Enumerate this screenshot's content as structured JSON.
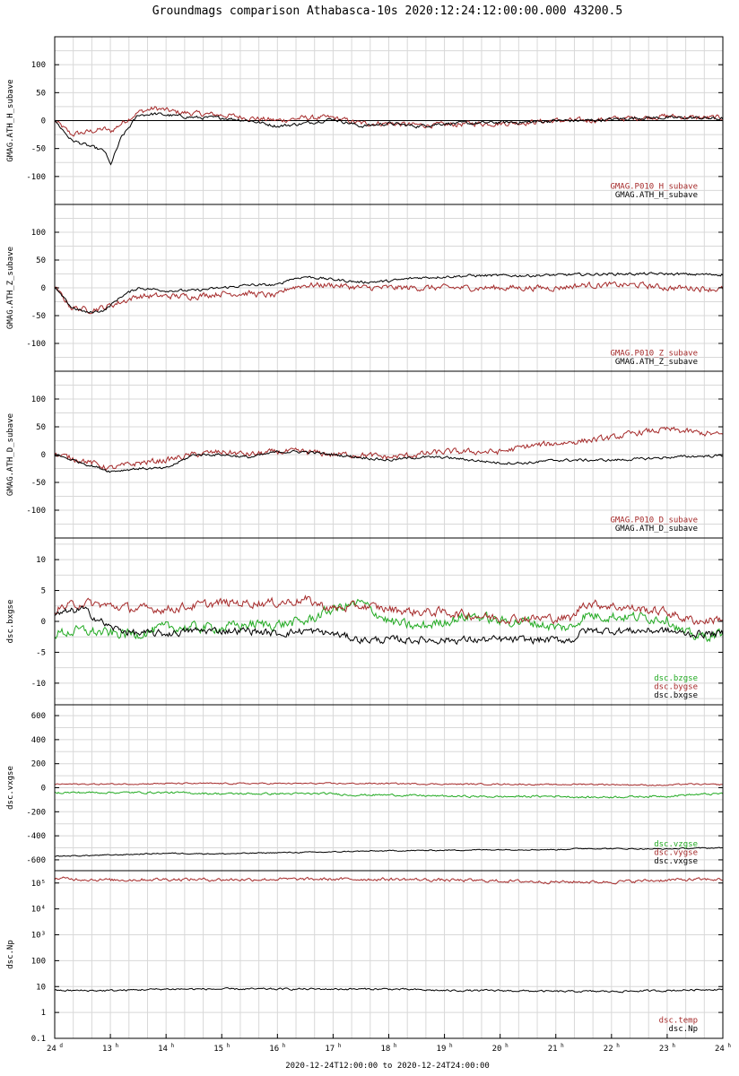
{
  "title": "Groundmags comparison Athabasca-10s 2020:12:24:12:00:00.000 43200.5",
  "time_range_label": "2020-12-24T12:00:00 to 2020-12-24T24:00:00",
  "colors": {
    "black": "#000000",
    "red": "#a52a2a",
    "green": "#22aa22",
    "grid": "#d8d8d8"
  },
  "chart_data": [
    {
      "type": "line",
      "ylabel": "GMAG.ATH_H_subave",
      "ylim": [
        -150,
        150
      ],
      "yticks": [
        -100,
        -50,
        0,
        50,
        100
      ],
      "yticklabels": [
        "-100",
        "-50",
        "0",
        "50",
        "100"
      ],
      "zero_line": true,
      "x": [
        12,
        12.3,
        12.6,
        12.9,
        13.0,
        13.2,
        13.5,
        13.8,
        14.2,
        14.6,
        15.0,
        15.5,
        16.0,
        16.5,
        17.0,
        17.5,
        18.0,
        18.5,
        19.0,
        19.5,
        20.0,
        20.5,
        21.0,
        21.5,
        22.0,
        22.5,
        23.0,
        23.5,
        24
      ],
      "legend": [
        "GMAG.P010_H_subave",
        "GMAG.ATH_H_subave"
      ],
      "series": [
        {
          "name": "GMAG.P010_H_subave",
          "color": "red",
          "noise": 4.0,
          "values": [
            0,
            -25,
            -20,
            -15,
            -20,
            -5,
            15,
            22,
            15,
            12,
            10,
            5,
            0,
            5,
            5,
            -5,
            -5,
            -8,
            -8,
            -5,
            -5,
            -3,
            0,
            0,
            3,
            5,
            8,
            5,
            5
          ]
        },
        {
          "name": "GMAG.ATH_H_subave",
          "color": "black",
          "noise": 2.5,
          "values": [
            0,
            -35,
            -45,
            -55,
            -80,
            -30,
            10,
            12,
            8,
            5,
            5,
            0,
            -10,
            -5,
            3,
            -10,
            -5,
            -10,
            -5,
            -5,
            -3,
            -3,
            0,
            0,
            2,
            5,
            5,
            5,
            3
          ]
        }
      ]
    },
    {
      "type": "line",
      "ylabel": "GMAG.ATH_Z_subave",
      "ylim": [
        -150,
        150
      ],
      "yticks": [
        -100,
        -50,
        0,
        50,
        100
      ],
      "yticklabels": [
        "-100",
        "-50",
        "0",
        "50",
        "100"
      ],
      "x": [
        12,
        12.3,
        12.6,
        12.9,
        13.2,
        13.5,
        14.0,
        14.5,
        15.0,
        15.5,
        16.0,
        16.2,
        16.5,
        17.0,
        17.5,
        18.0,
        18.5,
        19.0,
        19.5,
        20.0,
        20.5,
        21.0,
        21.5,
        22.0,
        22.5,
        23.0,
        23.5,
        24
      ],
      "legend": [
        "GMAG.P010_Z_subave",
        "GMAG.ATH_Z_subave"
      ],
      "series": [
        {
          "name": "GMAG.P010_Z_subave",
          "color": "red",
          "noise": 4.5,
          "values": [
            0,
            -35,
            -40,
            -35,
            -25,
            -15,
            -15,
            -15,
            -10,
            -10,
            -15,
            0,
            5,
            5,
            0,
            0,
            0,
            0,
            0,
            0,
            0,
            0,
            5,
            5,
            5,
            0,
            0,
            -3
          ]
        },
        {
          "name": "GMAG.ATH_Z_subave",
          "color": "black",
          "noise": 2.0,
          "values": [
            0,
            -35,
            -45,
            -40,
            -15,
            0,
            -5,
            -5,
            0,
            5,
            5,
            15,
            20,
            15,
            10,
            12,
            18,
            20,
            22,
            22,
            22,
            23,
            24,
            25,
            25,
            25,
            24,
            24
          ]
        }
      ]
    },
    {
      "type": "line",
      "ylabel": "GMAG.ATH_D_subave",
      "ylim": [
        -150,
        150
      ],
      "yticks": [
        -100,
        -50,
        0,
        50,
        100
      ],
      "yticklabels": [
        "-100",
        "-50",
        "0",
        "50",
        "100"
      ],
      "x": [
        12,
        12.5,
        13.0,
        13.5,
        14.0,
        14.5,
        15.0,
        15.5,
        16.0,
        16.5,
        17.0,
        17.5,
        18.0,
        18.5,
        19.0,
        19.5,
        20.0,
        20.5,
        21.0,
        21.5,
        22.0,
        22.5,
        23.0,
        23.5,
        24
      ],
      "legend": [
        "GMAG.P010_D_subave",
        "GMAG.ATH_D_subave"
      ],
      "series": [
        {
          "name": "GMAG.P010_D_subave",
          "color": "red",
          "noise": 4.5,
          "values": [
            0,
            -10,
            -25,
            -15,
            -10,
            0,
            5,
            0,
            5,
            5,
            0,
            0,
            -5,
            0,
            5,
            5,
            5,
            15,
            20,
            25,
            30,
            40,
            45,
            40,
            35
          ]
        },
        {
          "name": "GMAG.ATH_D_subave",
          "color": "black",
          "noise": 2.0,
          "values": [
            0,
            -15,
            -30,
            -25,
            -25,
            0,
            0,
            -5,
            5,
            5,
            0,
            -5,
            -10,
            -5,
            -5,
            -10,
            -15,
            -15,
            -10,
            -10,
            -10,
            -8,
            -5,
            -3,
            -2
          ]
        }
      ]
    },
    {
      "type": "line",
      "ylabel": "dsc.bxgse",
      "ylim": [
        -13.5,
        13.5
      ],
      "yticks": [
        -10,
        -5,
        0,
        5,
        10
      ],
      "yticklabels": [
        "-10",
        "-5",
        "0",
        "5",
        "10"
      ],
      "x": [
        12,
        12.5,
        13.0,
        13.5,
        14.0,
        14.5,
        15.0,
        15.5,
        16.0,
        16.5,
        17.0,
        17.5,
        18.0,
        18.5,
        19.0,
        19.5,
        20.0,
        20.5,
        21.0,
        21.3,
        21.5,
        23.0,
        23.3,
        23.6,
        24
      ],
      "legend": [
        "dsc.bzgse",
        "dsc.bygse",
        "dsc.bxgse"
      ],
      "series": [
        {
          "name": "dsc.bzgse",
          "color": "green",
          "noise": 0.7,
          "values": [
            -2,
            -1.5,
            -2,
            -2,
            -1,
            -1,
            -1,
            -0.5,
            -0.5,
            0,
            2,
            3,
            0,
            -1,
            0,
            1,
            0,
            0,
            -1,
            -1,
            1,
            0.5,
            -2,
            -2.5,
            -2
          ]
        },
        {
          "name": "dsc.bygse",
          "color": "red",
          "noise": 0.6,
          "values": [
            2,
            3,
            2.5,
            2,
            2,
            2.5,
            3,
            3,
            3,
            3.5,
            2,
            2.5,
            2,
            1.5,
            1.5,
            1,
            0.5,
            0.5,
            0.5,
            0.5,
            3,
            1.5,
            0.5,
            0,
            0.5
          ]
        },
        {
          "name": "dsc.bxgse",
          "color": "black",
          "noise": 0.5,
          "values": [
            1,
            2,
            -1,
            -2,
            -2,
            -1.5,
            -1.5,
            -1.5,
            -2,
            -1.5,
            -2,
            -3,
            -3,
            -3,
            -3,
            -3,
            -3,
            -3,
            -3,
            -3,
            -1.5,
            -1.5,
            -2,
            -2,
            -2
          ]
        }
      ]
    },
    {
      "type": "line",
      "ylabel": "dsc.vxgse",
      "ylim": [
        -690,
        690
      ],
      "yticks": [
        -600,
        -400,
        -200,
        0,
        200,
        400,
        600
      ],
      "yticklabels": [
        "-600",
        "-400",
        "-200",
        "0",
        "200",
        "400",
        "600"
      ],
      "x": [
        12,
        13,
        14,
        15,
        16,
        17,
        17.3,
        18,
        19,
        20,
        21,
        21.5,
        23.0,
        23.3,
        24
      ],
      "legend": [
        "dsc.vzgse",
        "dsc.vygse",
        "dsc.vxgse"
      ],
      "series": [
        {
          "name": "dsc.vzgse",
          "color": "green",
          "noise": 7,
          "values": [
            -40,
            -40,
            -40,
            -50,
            -50,
            -50,
            -60,
            -60,
            -70,
            -75,
            -70,
            -80,
            -70,
            -60,
            -50
          ]
        },
        {
          "name": "dsc.vygse",
          "color": "red",
          "noise": 5,
          "values": [
            30,
            30,
            35,
            35,
            35,
            35,
            35,
            35,
            30,
            30,
            25,
            30,
            20,
            30,
            25
          ]
        },
        {
          "name": "dsc.vxgse",
          "color": "black",
          "noise": 4,
          "values": [
            -570,
            -560,
            -545,
            -550,
            -540,
            -535,
            -530,
            -525,
            -520,
            -515,
            -515,
            -505,
            -510,
            -505,
            -500
          ]
        }
      ]
    },
    {
      "type": "line",
      "ylabel": "dsc.Np",
      "yscale": "log",
      "ylim": [
        0.1,
        300000
      ],
      "yticks": [
        0.1,
        1,
        10,
        100,
        1000,
        10000,
        100000
      ],
      "yticklabels": [
        "0.1",
        "1",
        "10",
        "100",
        "10³",
        "10⁴",
        "10⁵"
      ],
      "x": [
        12,
        13,
        14,
        15,
        16,
        17,
        18,
        19,
        20,
        21,
        22,
        23,
        24
      ],
      "legend": [
        "dsc.temp",
        "dsc.Np"
      ],
      "series": [
        {
          "name": "dsc.temp",
          "color": "red",
          "noise_log": 0.05,
          "values": [
            150000,
            130000,
            140000,
            135000,
            140000,
            140000,
            140000,
            130000,
            120000,
            110000,
            110000,
            130000,
            140000
          ]
        },
        {
          "name": "dsc.Np",
          "color": "black",
          "noise_log": 0.03,
          "values": [
            7,
            7,
            8,
            8,
            8,
            8,
            8,
            7,
            7,
            6.5,
            6.5,
            7,
            8
          ]
        }
      ]
    }
  ],
  "xaxis": {
    "range": [
      12,
      24
    ],
    "ticks": [
      {
        "x": 12,
        "label": "24",
        "sup": "d"
      },
      {
        "x": 13,
        "label": "13",
        "sup": "h"
      },
      {
        "x": 14,
        "label": "14",
        "sup": "h"
      },
      {
        "x": 15,
        "label": "15",
        "sup": "h"
      },
      {
        "x": 16,
        "label": "16",
        "sup": "h"
      },
      {
        "x": 17,
        "label": "17",
        "sup": "h"
      },
      {
        "x": 18,
        "label": "18",
        "sup": "h"
      },
      {
        "x": 19,
        "label": "19",
        "sup": "h"
      },
      {
        "x": 20,
        "label": "20",
        "sup": "h"
      },
      {
        "x": 21,
        "label": "21",
        "sup": "h"
      },
      {
        "x": 22,
        "label": "22",
        "sup": "h"
      },
      {
        "x": 23,
        "label": "23",
        "sup": "h"
      },
      {
        "x": 24,
        "label": "24",
        "sup": "h"
      }
    ]
  }
}
